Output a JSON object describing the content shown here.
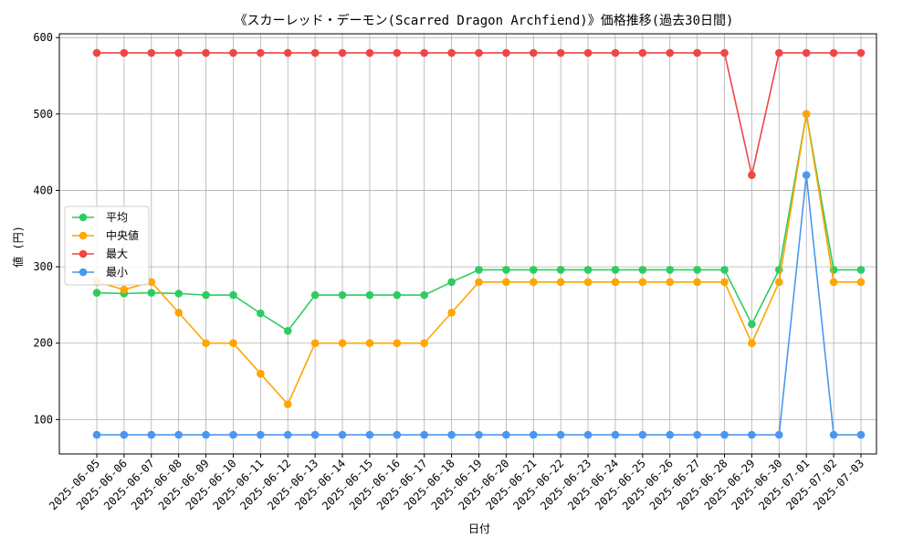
{
  "chart_data": {
    "type": "line",
    "title": "《スカーレッド・デーモン(Scarred Dragon Archfiend)》価格推移(過去30日間)",
    "xlabel": "日付",
    "ylabel": "値 (円)",
    "ylim": [
      55,
      605
    ],
    "yticks": [
      100,
      200,
      300,
      400,
      500,
      600
    ],
    "grid": true,
    "legend_position": "center-left",
    "x": [
      "2025-06-05",
      "2025-06-06",
      "2025-06-07",
      "2025-06-08",
      "2025-06-09",
      "2025-06-10",
      "2025-06-11",
      "2025-06-12",
      "2025-06-13",
      "2025-06-14",
      "2025-06-15",
      "2025-06-16",
      "2025-06-17",
      "2025-06-18",
      "2025-06-19",
      "2025-06-20",
      "2025-06-21",
      "2025-06-22",
      "2025-06-23",
      "2025-06-24",
      "2025-06-25",
      "2025-06-26",
      "2025-06-27",
      "2025-06-28",
      "2025-06-29",
      "2025-06-30",
      "2025-07-01",
      "2025-07-02",
      "2025-07-03"
    ],
    "series": [
      {
        "name": "平均",
        "color": "#2ecc5f",
        "values": [
          266,
          265,
          266,
          265,
          263,
          263,
          239,
          216,
          263,
          263,
          263,
          263,
          263,
          280,
          296,
          296,
          296,
          296,
          296,
          296,
          296,
          296,
          296,
          296,
          225,
          296,
          500,
          296,
          296
        ]
      },
      {
        "name": "中央値",
        "color": "#ffa500",
        "values": [
          280,
          270,
          280,
          240,
          200,
          200,
          160,
          120,
          200,
          200,
          200,
          200,
          200,
          240,
          280,
          280,
          280,
          280,
          280,
          280,
          280,
          280,
          280,
          280,
          200,
          280,
          500,
          280,
          280
        ]
      },
      {
        "name": "最大",
        "color": "#f04545",
        "values": [
          580,
          580,
          580,
          580,
          580,
          580,
          580,
          580,
          580,
          580,
          580,
          580,
          580,
          580,
          580,
          580,
          580,
          580,
          580,
          580,
          580,
          580,
          580,
          580,
          420,
          580,
          580,
          580,
          580
        ]
      },
      {
        "name": "最小",
        "color": "#4a97f0",
        "values": [
          80,
          80,
          80,
          80,
          80,
          80,
          80,
          80,
          80,
          80,
          80,
          80,
          80,
          80,
          80,
          80,
          80,
          80,
          80,
          80,
          80,
          80,
          80,
          80,
          80,
          80,
          420,
          80,
          80
        ]
      }
    ]
  }
}
